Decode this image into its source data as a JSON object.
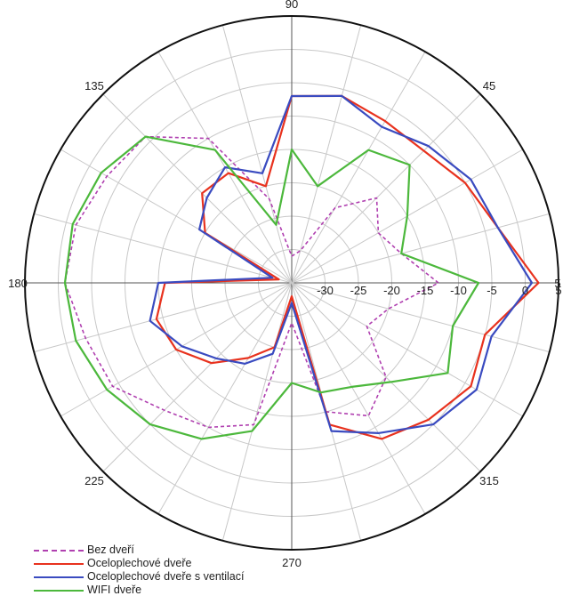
{
  "chart_data": {
    "type": "polar",
    "angle_ticks": [
      "90",
      "45",
      "135",
      "180",
      "5",
      "225",
      "270",
      "315"
    ],
    "radial_ticks": [
      "-30",
      "-25",
      "-20",
      "-15",
      "-10",
      "-5",
      "0",
      "5"
    ],
    "rlim": [
      -35,
      5
    ],
    "grid": true,
    "legend_position": "bottom-left",
    "series": [
      {
        "name": "Bez dveří",
        "color": "#b040b0",
        "style": "dashed",
        "theta": [
          0,
          15,
          30,
          45,
          60,
          75,
          90,
          105,
          120,
          135,
          150,
          165,
          180,
          195,
          210,
          225,
          240,
          255,
          270,
          285,
          300,
          315,
          330,
          345,
          360
        ],
        "r": [
          -13,
          -18,
          -20,
          -17,
          -22,
          -30,
          -31,
          -22,
          -10,
          -4,
          -3,
          -1.5,
          -1,
          -3,
          -4,
          -8,
          -10,
          -13,
          -29,
          -15,
          -12,
          -15,
          -22,
          -20,
          -13
        ]
      },
      {
        "name": "Oceloplechové dveře",
        "color": "#e8321e",
        "style": "solid",
        "theta": [
          0,
          15,
          30,
          45,
          60,
          75,
          90,
          105,
          120,
          135,
          150,
          165,
          180,
          195,
          210,
          225,
          240,
          255,
          270,
          285,
          300,
          315,
          330,
          345,
          360
        ],
        "r": [
          2,
          -3,
          -5,
          -7,
          -7,
          -6,
          -7,
          -20,
          -16,
          -16,
          -20,
          -33,
          -16,
          -14,
          -15,
          -18,
          -22,
          -25,
          -33,
          -13,
          -8,
          -6,
          -4,
          -5,
          2
        ]
      },
      {
        "name": "Oceloplechové dveře s ventilací",
        "color": "#3a4bc0",
        "style": "solid",
        "theta": [
          0,
          15,
          30,
          45,
          60,
          75,
          90,
          105,
          120,
          135,
          150,
          165,
          180,
          195,
          210,
          225,
          240,
          255,
          270,
          285,
          300,
          315,
          330,
          345,
          360
        ],
        "r": [
          1,
          -3,
          -4,
          -6,
          -8,
          -6,
          -7,
          -18,
          -15,
          -17,
          -19,
          -32,
          -15,
          -13,
          -16,
          -19,
          -21,
          -24,
          -32,
          -12,
          -9,
          -5,
          -3,
          -4,
          1
        ]
      },
      {
        "name": "WIFI dveře",
        "color": "#4cb83c",
        "style": "solid",
        "theta": [
          0,
          15,
          30,
          45,
          60,
          75,
          90,
          105,
          120,
          135,
          150,
          165,
          180,
          195,
          210,
          225,
          240,
          255,
          270,
          285,
          300,
          315,
          330,
          345,
          360
        ],
        "r": [
          -7,
          -18,
          -15,
          -10,
          -12,
          -20,
          -15,
          -26,
          -12,
          -4,
          -2,
          -1,
          -1,
          -1.5,
          -3,
          -5,
          -8,
          -12,
          -20,
          -18,
          -17,
          -14,
          -8,
          -10,
          -7
        ]
      }
    ]
  }
}
